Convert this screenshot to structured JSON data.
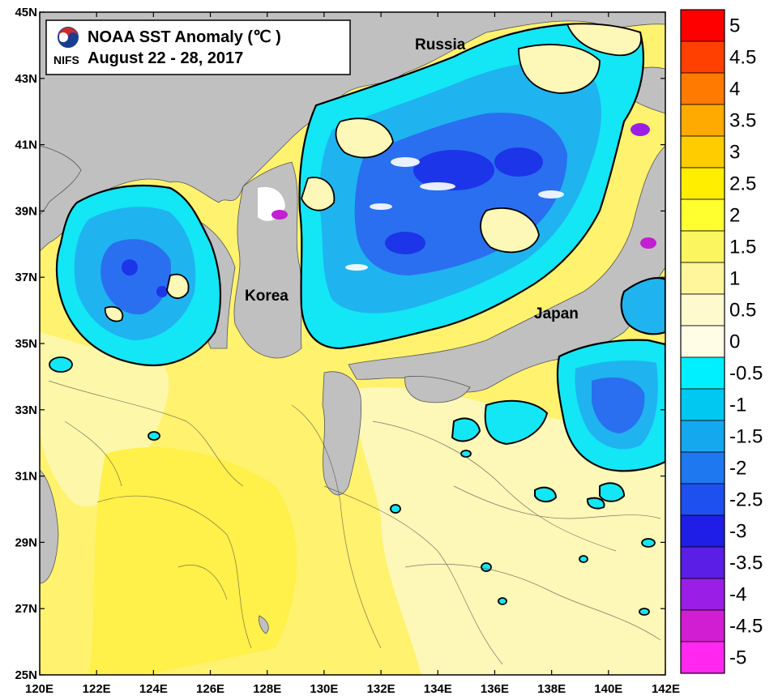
{
  "title": {
    "main": "NOAA SST Anomaly (℃ )",
    "dates": "August 22 - 28, 2017",
    "logo_text": "NIFS"
  },
  "region_labels": [
    {
      "id": "russia",
      "text": "Russia"
    },
    {
      "id": "korea",
      "text": "Korea"
    },
    {
      "id": "japan",
      "text": "Japan"
    }
  ],
  "latitude_labels": [
    "45N",
    "43N",
    "41N",
    "39N",
    "37N",
    "35N",
    "33N",
    "31N",
    "29N",
    "27N",
    "25N"
  ],
  "longitude_labels": [
    "120E",
    "122E",
    "124E",
    "126E",
    "128E",
    "130E",
    "132E",
    "134E",
    "136E",
    "138E",
    "140E",
    "142E"
  ],
  "colorbar": {
    "labels": [
      "5",
      "4.5",
      "4",
      "3.5",
      "3",
      "2.5",
      "2",
      "1.5",
      "1",
      "0.5",
      "0",
      "-0.5",
      "-1",
      "-1.5",
      "-2",
      "-2.5",
      "-3",
      "-3.5",
      "-4",
      "-4.5",
      "-5"
    ],
    "colors": [
      "#ff0000",
      "#ff4000",
      "#ff7a00",
      "#ffaa00",
      "#ffcc00",
      "#ffee00",
      "#ffff30",
      "#fbf560",
      "#fff59a",
      "#fffacd",
      "#fffde6",
      "#00f0ff",
      "#00c8f0",
      "#14a8ee",
      "#1e78f0",
      "#1e50f0",
      "#1e1ee6",
      "#5a1ee6",
      "#9a1ee6",
      "#d21ed2",
      "#ff28f0"
    ]
  },
  "colors": {
    "land": "#c0c0c0",
    "warm_base": "#fff26e",
    "warm_light": "#fdf7b8",
    "cold_light": "#13e6f5",
    "cold_mid": "#1fb3f0",
    "cold_deep": "#2a6ff0",
    "cold_deepest": "#1c35e8"
  }
}
